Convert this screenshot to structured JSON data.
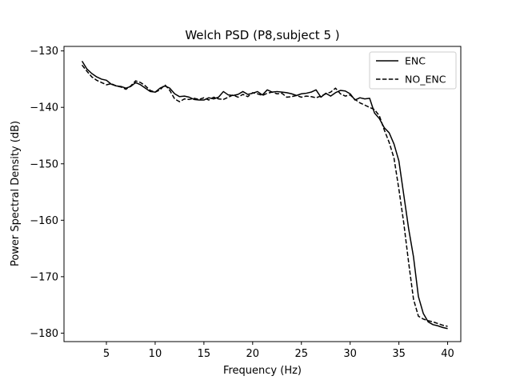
{
  "chart_data": {
    "type": "line",
    "title": "Welch PSD (P8,subject 5 )",
    "xlabel": "Frequency (Hz)",
    "ylabel": "Power Spectral Density (dB)",
    "xlim": [
      0.65,
      41.35
    ],
    "ylim": [
      -181.5,
      -129.2
    ],
    "xticks": [
      5,
      10,
      15,
      20,
      25,
      30,
      35,
      40
    ],
    "yticks": [
      -130,
      -140,
      -150,
      -160,
      -170,
      -180
    ],
    "xtick_labels": [
      "5",
      "10",
      "15",
      "20",
      "25",
      "30",
      "35",
      "40"
    ],
    "ytick_labels": [
      "−130",
      "−140",
      "−150",
      "−160",
      "−170",
      "−180"
    ],
    "grid": false,
    "legend_position": "top-right",
    "series": [
      {
        "name": "ENC",
        "style": "solid",
        "color": "#000000",
        "x": [
          2.5,
          3.0,
          3.5,
          4.0,
          4.5,
          5.0,
          5.5,
          6.0,
          6.5,
          7.0,
          7.5,
          8.0,
          8.5,
          9.0,
          9.5,
          10.0,
          10.5,
          11.0,
          11.5,
          12.0,
          12.5,
          13.0,
          13.5,
          14.0,
          14.5,
          15.0,
          15.5,
          16.0,
          16.5,
          17.0,
          17.5,
          18.0,
          18.5,
          19.0,
          19.5,
          20.0,
          20.5,
          21.0,
          21.5,
          22.0,
          22.5,
          23.0,
          23.5,
          24.0,
          24.5,
          25.0,
          25.5,
          26.0,
          26.5,
          27.0,
          27.5,
          28.0,
          28.5,
          29.0,
          29.5,
          30.0,
          30.5,
          31.0,
          31.5,
          32.0,
          32.5,
          33.0,
          33.5,
          34.0,
          34.5,
          35.0,
          35.5,
          36.0,
          36.5,
          37.0,
          37.5,
          38.0,
          38.5,
          39.0,
          39.5,
          40.0
        ],
        "y": [
          -131.8,
          -133.2,
          -134.0,
          -134.6,
          -135.0,
          -135.2,
          -135.9,
          -136.2,
          -136.3,
          -136.6,
          -136.3,
          -135.6,
          -136.0,
          -136.6,
          -137.2,
          -137.3,
          -136.6,
          -136.2,
          -136.6,
          -137.6,
          -138.1,
          -138.0,
          -138.2,
          -138.6,
          -138.7,
          -138.7,
          -138.3,
          -138.5,
          -138.2,
          -137.2,
          -137.8,
          -137.9,
          -137.7,
          -137.2,
          -137.7,
          -137.5,
          -137.2,
          -137.8,
          -136.9,
          -137.3,
          -137.2,
          -137.3,
          -137.4,
          -137.6,
          -137.9,
          -137.6,
          -137.5,
          -137.3,
          -136.9,
          -138.2,
          -137.5,
          -138.0,
          -137.4,
          -137.0,
          -137.1,
          -137.6,
          -138.7,
          -138.3,
          -138.5,
          -138.4,
          -141.0,
          -142.0,
          -143.6,
          -144.5,
          -146.5,
          -149.5,
          -155.5,
          -161.5,
          -166.5,
          -173.5,
          -176.5,
          -178.0,
          -178.5,
          -178.7,
          -179.0,
          -179.2
        ]
      },
      {
        "name": "NO_ENC",
        "style": "dashed",
        "color": "#000000",
        "x": [
          2.5,
          3.0,
          3.5,
          4.0,
          4.5,
          5.0,
          5.5,
          6.0,
          6.5,
          7.0,
          7.5,
          8.0,
          8.5,
          9.0,
          9.5,
          10.0,
          10.5,
          11.0,
          11.5,
          12.0,
          12.5,
          13.0,
          13.5,
          14.0,
          14.5,
          15.0,
          15.5,
          16.0,
          16.5,
          17.0,
          17.5,
          18.0,
          18.5,
          19.0,
          19.5,
          20.0,
          20.5,
          21.0,
          21.5,
          22.0,
          22.5,
          23.0,
          23.5,
          24.0,
          24.5,
          25.0,
          25.5,
          26.0,
          26.5,
          27.0,
          27.5,
          28.0,
          28.5,
          29.0,
          29.5,
          30.0,
          30.5,
          31.0,
          31.5,
          32.0,
          32.5,
          33.0,
          33.5,
          34.0,
          34.5,
          35.0,
          35.5,
          36.0,
          36.5,
          37.0,
          37.5,
          38.0,
          38.5,
          39.0,
          39.5,
          40.0
        ],
        "y": [
          -132.5,
          -133.6,
          -134.6,
          -135.2,
          -135.6,
          -136.0,
          -135.8,
          -136.2,
          -136.4,
          -136.8,
          -136.2,
          -135.3,
          -135.6,
          -136.2,
          -137.0,
          -137.3,
          -136.9,
          -136.0,
          -137.0,
          -138.5,
          -139.0,
          -138.5,
          -138.6,
          -138.4,
          -138.6,
          -138.3,
          -138.7,
          -138.2,
          -138.5,
          -138.6,
          -138.2,
          -137.8,
          -138.2,
          -137.7,
          -138.1,
          -137.4,
          -137.6,
          -137.9,
          -137.5,
          -137.3,
          -137.6,
          -137.5,
          -138.2,
          -138.1,
          -137.9,
          -138.2,
          -138.0,
          -138.1,
          -138.3,
          -138.0,
          -137.6,
          -137.3,
          -136.6,
          -137.6,
          -138.0,
          -137.8,
          -138.6,
          -139.2,
          -139.6,
          -140.0,
          -140.4,
          -141.5,
          -144.0,
          -146.2,
          -149.0,
          -154.5,
          -160.5,
          -167.5,
          -174.0,
          -177.0,
          -177.5,
          -177.8,
          -178.0,
          -178.3,
          -178.6,
          -178.8
        ]
      }
    ]
  }
}
